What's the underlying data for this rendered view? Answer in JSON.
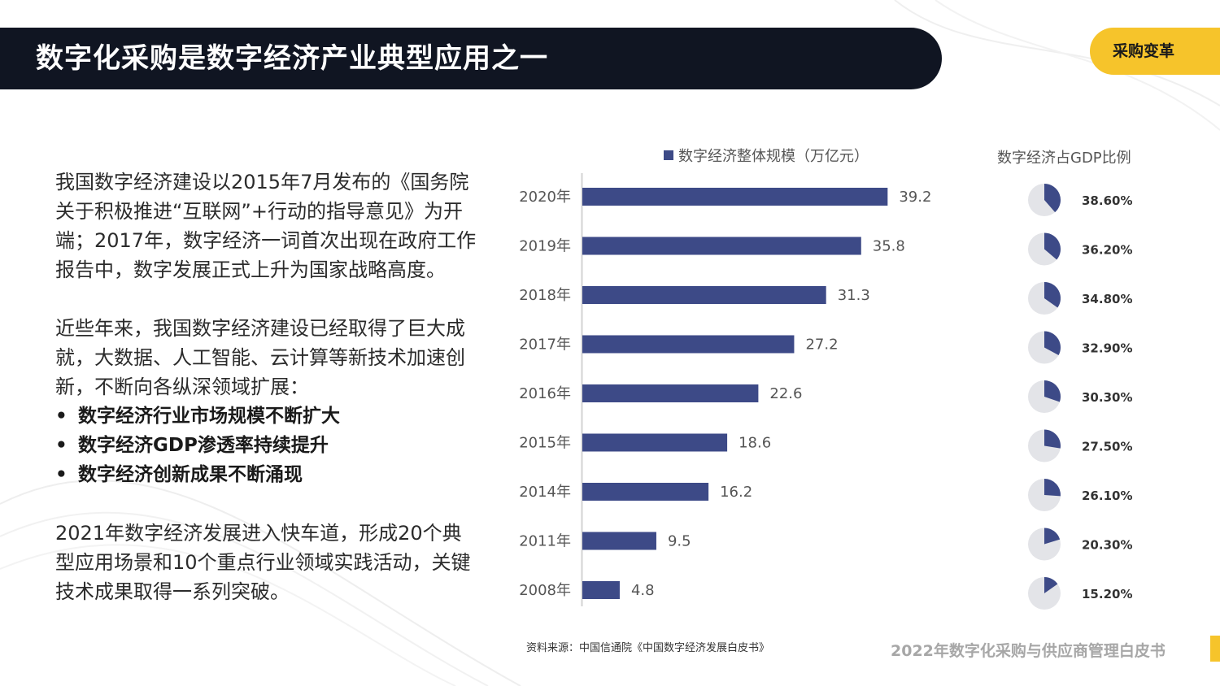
{
  "header": {
    "title": "数字化采购是数字经济产业典型应用之一",
    "tag": "采购变革"
  },
  "body": {
    "paragraph1": "我国数字经济建设以2015年7月发布的《国务院关于积极推进“互联网”+行动的指导意见》为开端；2017年，数字经济一词首次出现在政府工作报告中，数字发展正式上升为国家战略高度。",
    "paragraph2": "近些年来，我国数字经济建设已经取得了巨大成就，大数据、人工智能、云计算等新技术加速创新，不断向各纵深领域扩展：",
    "bullets": [
      "数字经济行业市场规模不断扩大",
      "数字经济GDP渗透率持续提升",
      "数字经济创新成果不断涌现"
    ],
    "paragraph3": "2021年数字经济发展进入快车道，形成20个典型应用场景和10个重点行业领域实践活动，关键技术成果取得一系列突破。"
  },
  "chart_data": [
    {
      "type": "bar",
      "orientation": "horizontal",
      "series": [
        {
          "name": "数字经济整体规模（万亿元）",
          "values": [
            39.2,
            35.8,
            31.3,
            27.2,
            22.6,
            18.6,
            16.2,
            9.5,
            4.8
          ]
        }
      ],
      "categories": [
        "2020年",
        "2019年",
        "2018年",
        "2017年",
        "2016年",
        "2015年",
        "2014年",
        "2011年",
        "2008年"
      ],
      "xlim": [
        0,
        40
      ],
      "grid": false,
      "legend_position": "top",
      "data_labels": [
        "39.2",
        "35.8",
        "31.3",
        "27.2",
        "22.6",
        "18.6",
        "16.2",
        "9.5",
        "4.8"
      ],
      "bar_color": "#3d4a87"
    },
    {
      "type": "pie",
      "title": "数字经济占GDP比例",
      "values": [
        38.6,
        36.2,
        34.8,
        32.9,
        30.3,
        27.5,
        26.1,
        20.3,
        15.2
      ],
      "labels": [
        "38.60%",
        "36.20%",
        "34.80%",
        "32.90%",
        "30.30%",
        "27.50%",
        "26.10%",
        "20.30%",
        "15.20%"
      ],
      "slice_color": "#3d4a87",
      "rest_color": "#e3e4e8"
    }
  ],
  "footer": {
    "source": "资料来源：中国信通院《中国数字经济发展白皮书》",
    "report_title": "2022年数字化采购与供应商管理白皮书"
  }
}
